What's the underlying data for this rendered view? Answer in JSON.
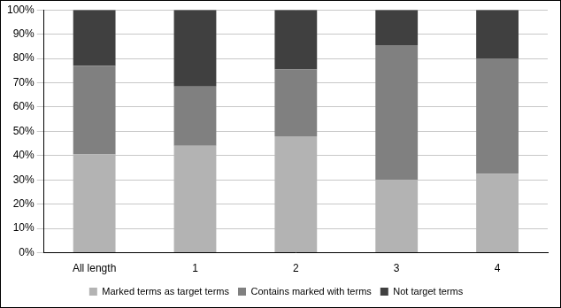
{
  "chart_data": {
    "type": "bar",
    "stacked": true,
    "grid": true,
    "legend": "bottom",
    "categories": [
      "All length",
      "1",
      "2",
      "3",
      "4"
    ],
    "series": [
      {
        "name": "Marked terms as target terms",
        "color": "#b3b3b3",
        "values": [
          40.5,
          44,
          48,
          30,
          32.5
        ]
      },
      {
        "name": "Contains marked with terms",
        "color": "#808080",
        "values": [
          36.5,
          24.5,
          27.5,
          55.5,
          47.5
        ]
      },
      {
        "name": "Not target terms",
        "color": "#404040",
        "values": [
          23,
          31.5,
          24.5,
          14.5,
          20
        ]
      }
    ],
    "ylim": [
      0,
      100
    ],
    "yticks": [
      {
        "value": 0,
        "label": "0%"
      },
      {
        "value": 10,
        "label": "10%"
      },
      {
        "value": 20,
        "label": "20%"
      },
      {
        "value": 30,
        "label": "30%"
      },
      {
        "value": 40,
        "label": "40%"
      },
      {
        "value": 50,
        "label": "50%"
      },
      {
        "value": 60,
        "label": "60%"
      },
      {
        "value": 70,
        "label": "70%"
      },
      {
        "value": 80,
        "label": "80%"
      },
      {
        "value": 90,
        "label": "90%"
      },
      {
        "value": 100,
        "label": "100%"
      }
    ]
  }
}
